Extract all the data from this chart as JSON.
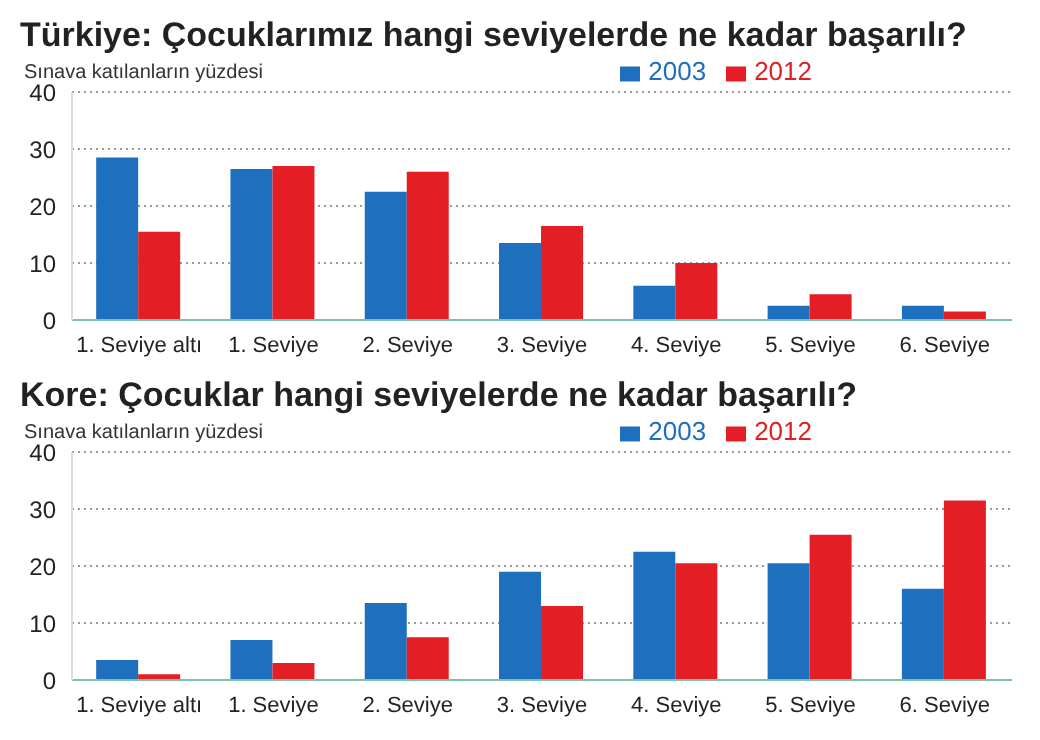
{
  "chart_data": [
    {
      "type": "bar",
      "title": "Türkiye: Çocuklarımız hangi seviyelerde ne kadar başarılı?",
      "ylabel": "Sınava katılanların yüzdesi",
      "categories": [
        "1. Seviye altı",
        "1. Seviye",
        "2. Seviye",
        "3. Seviye",
        "4. Seviye",
        "5. Seviye",
        "6. Seviye"
      ],
      "series": [
        {
          "name": "2003",
          "color": "#1f6fbf",
          "values": [
            28.5,
            26.5,
            22.5,
            13.5,
            6,
            2.5,
            2.5
          ]
        },
        {
          "name": "2012",
          "color": "#e31e24",
          "values": [
            15.5,
            27,
            26,
            16.5,
            10,
            4.5,
            1.5
          ]
        }
      ],
      "ylim": [
        0,
        40
      ],
      "yticks": [
        0,
        10,
        20,
        30,
        40
      ],
      "grid": "y",
      "legend": "top right"
    },
    {
      "type": "bar",
      "title": "Kore: Çocuklar hangi seviyelerde ne kadar başarılı?",
      "ylabel": "Sınava katılanların yüzdesi",
      "categories": [
        "1. Seviye altı",
        "1. Seviye",
        "2. Seviye",
        "3. Seviye",
        "4. Seviye",
        "5. Seviye",
        "6. Seviye"
      ],
      "series": [
        {
          "name": "2003",
          "color": "#1f6fbf",
          "values": [
            3.5,
            7,
            13.5,
            19,
            22.5,
            20.5,
            16
          ]
        },
        {
          "name": "2012",
          "color": "#e31e24",
          "values": [
            1,
            3,
            7.5,
            13,
            20.5,
            25.5,
            31.5
          ]
        }
      ],
      "ylim": [
        0,
        40
      ],
      "yticks": [
        0,
        10,
        20,
        30,
        40
      ],
      "grid": "y",
      "legend": "top right"
    }
  ]
}
